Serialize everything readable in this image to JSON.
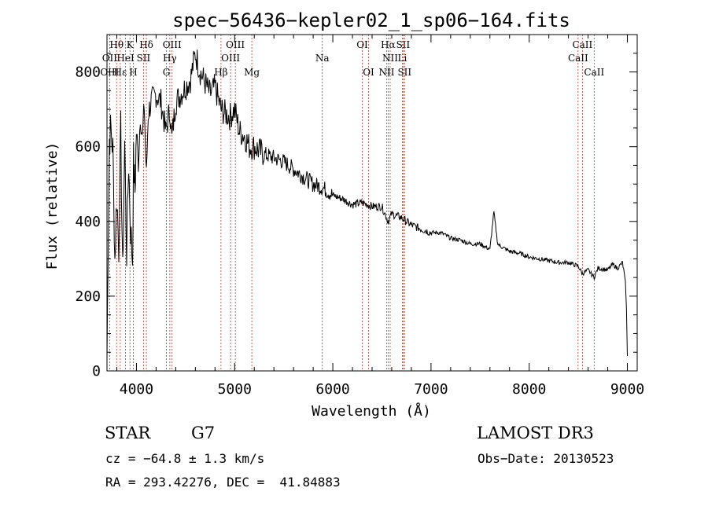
{
  "chart_data": {
    "type": "line",
    "title": "spec−56436−kepler02_1_sp06−164.fits",
    "xlabel": "Wavelength (Å)",
    "ylabel": "Flux (relative)",
    "xlim": [
      3700,
      9100
    ],
    "ylim": [
      0,
      900
    ],
    "x_ticks": [
      4000,
      5000,
      6000,
      7000,
      8000,
      9000
    ],
    "y_ticks": [
      0,
      200,
      400,
      600,
      800
    ],
    "series": [
      {
        "name": "spectrum",
        "x": [
          3700,
          3710,
          3725,
          3740,
          3760,
          3780,
          3800,
          3820,
          3840,
          3860,
          3880,
          3900,
          3920,
          3940,
          3960,
          3970,
          3985,
          4000,
          4020,
          4040,
          4060,
          4080,
          4101,
          4120,
          4150,
          4200,
          4250,
          4300,
          4340,
          4360,
          4400,
          4450,
          4500,
          4550,
          4600,
          4650,
          4700,
          4750,
          4800,
          4861,
          4900,
          4950,
          5000,
          5050,
          5100,
          5150,
          5200,
          5300,
          5400,
          5500,
          5600,
          5700,
          5800,
          5900,
          6000,
          6100,
          6200,
          6300,
          6400,
          6500,
          6563,
          6600,
          6700,
          6800,
          6900,
          7000,
          7100,
          7200,
          7300,
          7400,
          7500,
          7600,
          7640,
          7680,
          7700,
          7800,
          7900,
          8000,
          8100,
          8200,
          8300,
          8400,
          8500,
          8542,
          8600,
          8662,
          8700,
          8800,
          8850,
          8900,
          8950,
          8980,
          8990,
          9000
        ],
        "values": [
          30,
          300,
          620,
          650,
          590,
          300,
          470,
          330,
          640,
          250,
          610,
          320,
          560,
          380,
          300,
          560,
          480,
          640,
          560,
          690,
          620,
          710,
          520,
          690,
          720,
          740,
          720,
          640,
          700,
          620,
          720,
          740,
          760,
          780,
          850,
          800,
          770,
          740,
          760,
          700,
          690,
          680,
          700,
          640,
          630,
          600,
          600,
          580,
          570,
          560,
          540,
          520,
          500,
          490,
          470,
          460,
          445,
          450,
          440,
          440,
          400,
          420,
          410,
          390,
          380,
          370,
          370,
          355,
          350,
          340,
          340,
          325,
          425,
          340,
          335,
          320,
          315,
          305,
          300,
          295,
          290,
          290,
          280,
          260,
          270,
          250,
          275,
          270,
          285,
          275,
          290,
          240,
          170,
          40
        ]
      }
    ],
    "lines": [
      {
        "label": "Hθ",
        "x": 3798,
        "row": 0
      },
      {
        "label": "K",
        "x": 3934,
        "row": 0
      },
      {
        "label": "Hδ",
        "x": 4101,
        "row": 0
      },
      {
        "label": "OIII",
        "x": 4363,
        "row": 0
      },
      {
        "label": "OIII",
        "x": 5007,
        "row": 0
      },
      {
        "label": "OI",
        "x": 6300,
        "row": 0
      },
      {
        "label": "Hα",
        "x": 6563,
        "row": 0
      },
      {
        "label": "SII",
        "x": 6716,
        "row": 0
      },
      {
        "label": "CaII",
        "x": 8542,
        "row": 0
      },
      {
        "label": "OII",
        "x": 3727,
        "row": 1
      },
      {
        "label": "HeI",
        "x": 3889,
        "row": 1
      },
      {
        "label": "SII",
        "x": 4072,
        "row": 1
      },
      {
        "label": "Hγ",
        "x": 4340,
        "row": 1
      },
      {
        "label": "OIII",
        "x": 4959,
        "row": 1
      },
      {
        "label": "Na",
        "x": 5893,
        "row": 1
      },
      {
        "label": "NII",
        "x": 6584,
        "row": 1
      },
      {
        "label": "Li",
        "x": 6708,
        "row": 1
      },
      {
        "label": "CaII",
        "x": 8498,
        "row": 1
      },
      {
        "label": "OIII",
        "x": 3727,
        "row": 2
      },
      {
        "label": "Hε",
        "x": 3835,
        "row": 2
      },
      {
        "label": "H",
        "x": 3968,
        "row": 2
      },
      {
        "label": "G",
        "x": 4305,
        "row": 2
      },
      {
        "label": "Hβ",
        "x": 4861,
        "row": 2
      },
      {
        "label": "Mg",
        "x": 5175,
        "row": 2
      },
      {
        "label": "OI",
        "x": 6364,
        "row": 2
      },
      {
        "label": "NII",
        "x": 6548,
        "row": 2
      },
      {
        "label": "SII",
        "x": 6731,
        "row": 2
      },
      {
        "label": "CaII",
        "x": 8662,
        "row": 2
      }
    ]
  },
  "info": {
    "class": "STAR",
    "subclass": "G7",
    "survey": "LAMOST DR3",
    "cz": "cz = −64.8 ± 1.3 km/s",
    "obs_date": "Obs−Date: 20130523",
    "coords": "RA = 293.42276, DEC =  41.84883"
  }
}
